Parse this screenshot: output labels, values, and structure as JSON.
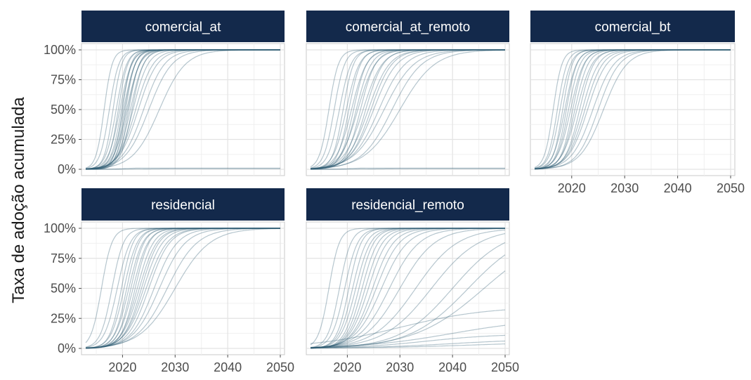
{
  "chart_data": {
    "type": "line",
    "ylabel": "Taxa de adoção acumulada",
    "xlim": [
      2013,
      2050
    ],
    "ylim": [
      0,
      1
    ],
    "x_ticks": [
      2020,
      2030,
      2040,
      2050
    ],
    "x_tick_labels": [
      "2020",
      "2030",
      "2040",
      "2050"
    ],
    "y_ticks": [
      0,
      0.25,
      0.5,
      0.75,
      1
    ],
    "y_tick_labels": [
      "0%",
      "25%",
      "50%",
      "75%",
      "100%"
    ],
    "grid": true,
    "line_color": "#2e5b72",
    "strip_color": "#13294b",
    "panels": [
      {
        "title": "comercial_at",
        "curves": [
          {
            "mid": 2016.5,
            "k": 1.3,
            "max": 1
          },
          {
            "mid": 2017.5,
            "k": 1.1,
            "max": 1
          },
          {
            "mid": 2018.2,
            "k": 1.2,
            "max": 1
          },
          {
            "mid": 2018.8,
            "k": 1.0,
            "max": 1
          },
          {
            "mid": 2019.2,
            "k": 1.1,
            "max": 1
          },
          {
            "mid": 2019.5,
            "k": 0.9,
            "max": 1
          },
          {
            "mid": 2019.8,
            "k": 1.0,
            "max": 1
          },
          {
            "mid": 2020.0,
            "k": 1.2,
            "max": 1
          },
          {
            "mid": 2020.2,
            "k": 0.9,
            "max": 1
          },
          {
            "mid": 2020.4,
            "k": 1.0,
            "max": 1
          },
          {
            "mid": 2020.6,
            "k": 1.1,
            "max": 1
          },
          {
            "mid": 2020.8,
            "k": 0.8,
            "max": 1
          },
          {
            "mid": 2021.0,
            "k": 0.9,
            "max": 1
          },
          {
            "mid": 2021.2,
            "k": 1.0,
            "max": 1
          },
          {
            "mid": 2021.5,
            "k": 0.8,
            "max": 1
          },
          {
            "mid": 2021.8,
            "k": 0.9,
            "max": 1
          },
          {
            "mid": 2022.0,
            "k": 0.7,
            "max": 1
          },
          {
            "mid": 2022.5,
            "k": 0.6,
            "max": 1
          },
          {
            "mid": 2023.0,
            "k": 0.55,
            "max": 1
          },
          {
            "mid": 2024.0,
            "k": 0.5,
            "max": 1
          },
          {
            "mid": 2025.0,
            "k": 0.45,
            "max": 1
          },
          {
            "mid": 2027.0,
            "k": 0.4,
            "max": 1
          },
          {
            "mid": 2020.0,
            "k": 1.0,
            "max": 0.01
          },
          {
            "mid": 2025.0,
            "k": 0.3,
            "max": 0.005
          }
        ]
      },
      {
        "title": "comercial_at_remoto",
        "curves": [
          {
            "mid": 2016.5,
            "k": 1.1,
            "max": 1
          },
          {
            "mid": 2017.5,
            "k": 1.0,
            "max": 1
          },
          {
            "mid": 2018.5,
            "k": 0.9,
            "max": 1
          },
          {
            "mid": 2019.2,
            "k": 1.0,
            "max": 1
          },
          {
            "mid": 2019.8,
            "k": 0.8,
            "max": 1
          },
          {
            "mid": 2020.3,
            "k": 0.9,
            "max": 1
          },
          {
            "mid": 2020.8,
            "k": 0.7,
            "max": 1
          },
          {
            "mid": 2021.2,
            "k": 0.8,
            "max": 1
          },
          {
            "mid": 2021.7,
            "k": 0.7,
            "max": 1
          },
          {
            "mid": 2022.0,
            "k": 0.6,
            "max": 1
          },
          {
            "mid": 2022.5,
            "k": 0.7,
            "max": 1
          },
          {
            "mid": 2023.0,
            "k": 0.55,
            "max": 1
          },
          {
            "mid": 2023.5,
            "k": 0.6,
            "max": 1
          },
          {
            "mid": 2024.0,
            "k": 0.5,
            "max": 1
          },
          {
            "mid": 2024.5,
            "k": 0.5,
            "max": 1
          },
          {
            "mid": 2025.0,
            "k": 0.45,
            "max": 1
          },
          {
            "mid": 2026.0,
            "k": 0.4,
            "max": 1
          },
          {
            "mid": 2027.0,
            "k": 0.35,
            "max": 1
          },
          {
            "mid": 2028.5,
            "k": 0.35,
            "max": 1
          },
          {
            "mid": 2030.0,
            "k": 0.3,
            "max": 1
          },
          {
            "mid": 2020.0,
            "k": 1.0,
            "max": 0.01
          },
          {
            "mid": 2025.0,
            "k": 0.3,
            "max": 0.005
          }
        ]
      },
      {
        "title": "comercial_bt",
        "curves": [
          {
            "mid": 2016.5,
            "k": 1.2,
            "max": 1
          },
          {
            "mid": 2017.3,
            "k": 1.1,
            "max": 1
          },
          {
            "mid": 2017.8,
            "k": 1.0,
            "max": 1
          },
          {
            "mid": 2018.3,
            "k": 1.1,
            "max": 1
          },
          {
            "mid": 2018.7,
            "k": 0.9,
            "max": 1
          },
          {
            "mid": 2019.0,
            "k": 1.0,
            "max": 1
          },
          {
            "mid": 2019.4,
            "k": 0.9,
            "max": 1
          },
          {
            "mid": 2019.8,
            "k": 0.8,
            "max": 1
          },
          {
            "mid": 2020.2,
            "k": 0.9,
            "max": 1
          },
          {
            "mid": 2020.6,
            "k": 0.8,
            "max": 1
          },
          {
            "mid": 2021.0,
            "k": 0.7,
            "max": 1
          },
          {
            "mid": 2021.5,
            "k": 0.75,
            "max": 1
          },
          {
            "mid": 2022.0,
            "k": 0.65,
            "max": 1
          },
          {
            "mid": 2022.5,
            "k": 0.6,
            "max": 1
          },
          {
            "mid": 2023.0,
            "k": 0.55,
            "max": 1
          },
          {
            "mid": 2024.0,
            "k": 0.5,
            "max": 1
          },
          {
            "mid": 2025.0,
            "k": 0.5,
            "max": 1
          },
          {
            "mid": 2026.0,
            "k": 0.45,
            "max": 1
          }
        ]
      },
      {
        "title": "residencial",
        "curves": [
          {
            "mid": 2016.0,
            "k": 1.0,
            "max": 1
          },
          {
            "mid": 2018.0,
            "k": 0.9,
            "max": 1
          },
          {
            "mid": 2019.0,
            "k": 0.8,
            "max": 1
          },
          {
            "mid": 2019.8,
            "k": 0.9,
            "max": 1
          },
          {
            "mid": 2020.3,
            "k": 0.8,
            "max": 1
          },
          {
            "mid": 2020.8,
            "k": 0.85,
            "max": 1
          },
          {
            "mid": 2021.2,
            "k": 0.75,
            "max": 1
          },
          {
            "mid": 2021.6,
            "k": 0.8,
            "max": 1
          },
          {
            "mid": 2022.0,
            "k": 0.7,
            "max": 1
          },
          {
            "mid": 2022.4,
            "k": 0.75,
            "max": 1
          },
          {
            "mid": 2022.8,
            "k": 0.65,
            "max": 1
          },
          {
            "mid": 2023.2,
            "k": 0.6,
            "max": 1
          },
          {
            "mid": 2023.6,
            "k": 0.6,
            "max": 1
          },
          {
            "mid": 2024.0,
            "k": 0.55,
            "max": 1
          },
          {
            "mid": 2024.5,
            "k": 0.5,
            "max": 1
          },
          {
            "mid": 2025.0,
            "k": 0.5,
            "max": 1
          },
          {
            "mid": 2026.0,
            "k": 0.45,
            "max": 1
          },
          {
            "mid": 2027.0,
            "k": 0.4,
            "max": 1
          },
          {
            "mid": 2028.5,
            "k": 0.35,
            "max": 1
          },
          {
            "mid": 2030.0,
            "k": 0.3,
            "max": 1
          }
        ]
      },
      {
        "title": "residencial_remoto",
        "curves": [
          {
            "mid": 2016.5,
            "k": 1.0,
            "max": 1
          },
          {
            "mid": 2018.5,
            "k": 0.9,
            "max": 1
          },
          {
            "mid": 2019.5,
            "k": 0.8,
            "max": 1
          },
          {
            "mid": 2020.3,
            "k": 0.85,
            "max": 1
          },
          {
            "mid": 2021.0,
            "k": 0.75,
            "max": 1
          },
          {
            "mid": 2021.6,
            "k": 0.7,
            "max": 1
          },
          {
            "mid": 2022.2,
            "k": 0.7,
            "max": 1
          },
          {
            "mid": 2022.8,
            "k": 0.65,
            "max": 1
          },
          {
            "mid": 2023.4,
            "k": 0.6,
            "max": 1
          },
          {
            "mid": 2024.0,
            "k": 0.55,
            "max": 1
          },
          {
            "mid": 2024.8,
            "k": 0.5,
            "max": 1
          },
          {
            "mid": 2025.5,
            "k": 0.45,
            "max": 1
          },
          {
            "mid": 2026.5,
            "k": 0.4,
            "max": 1
          },
          {
            "mid": 2028.0,
            "k": 0.35,
            "max": 1
          },
          {
            "mid": 2030.0,
            "k": 0.3,
            "max": 1
          },
          {
            "mid": 2033.0,
            "k": 0.25,
            "max": 1
          },
          {
            "mid": 2036.0,
            "k": 0.22,
            "max": 1
          },
          {
            "mid": 2040.0,
            "k": 0.2,
            "max": 1
          },
          {
            "mid": 2043.0,
            "k": 0.18,
            "max": 1
          },
          {
            "mid": 2046.0,
            "k": 0.15,
            "max": 1
          },
          {
            "mid": 2030.0,
            "k": 0.12,
            "max": 0.35
          },
          {
            "mid": 2040.0,
            "k": 0.12,
            "max": 0.25
          },
          {
            "mid": 2035.0,
            "k": 0.15,
            "max": 0.12
          },
          {
            "mid": 2040.0,
            "k": 0.12,
            "max": 0.08
          },
          {
            "mid": 2045.0,
            "k": 0.1,
            "max": 0.06
          }
        ]
      }
    ]
  }
}
